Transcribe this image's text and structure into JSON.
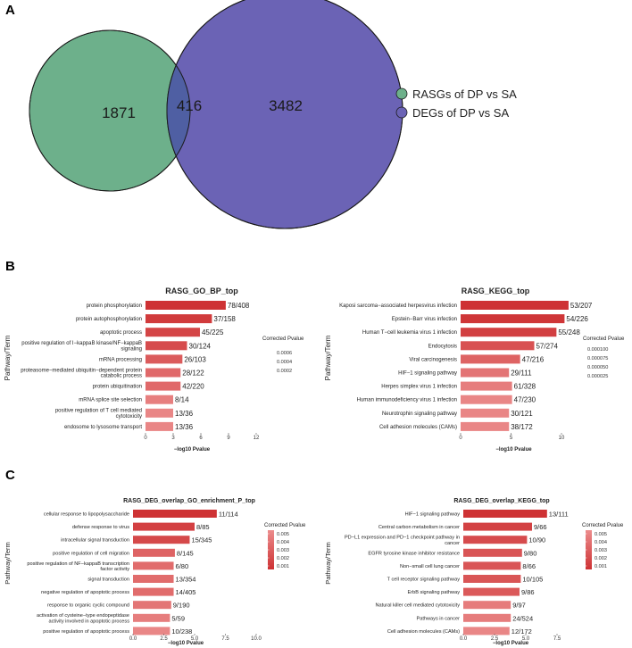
{
  "panels": {
    "a": "A",
    "b": "B",
    "c": "C"
  },
  "venn": {
    "left_only": "1871",
    "overlap": "416",
    "right_only": "3482",
    "colors": {
      "left": "#6db08b",
      "right": "#6b63b5",
      "overlap": "#4f5fa3"
    },
    "legend": [
      {
        "label": "RASGs of DP vs SA",
        "color": "#6db08b"
      },
      {
        "label": "DEGs of DP vs SA",
        "color": "#6b63b5"
      }
    ]
  },
  "chart_data": [
    {
      "id": "bp",
      "type": "bar",
      "title": "RASG_GO_BP_top",
      "xlabel": "−log10 Pvalue",
      "ylabel": "Pathway/Term",
      "xlim": [
        0,
        12
      ],
      "xticks": [
        "0",
        "3",
        "6",
        "9",
        "12"
      ],
      "categories": [
        [
          "protein phosphorylation"
        ],
        [
          "protein autophosphorylation"
        ],
        [
          "apoptotic process"
        ],
        [
          "positive regulation of I−kappaB kinase/NF−kappaB",
          "signaling"
        ],
        [
          "mRNA processing"
        ],
        [
          "proteasome−mediated ubiquitin−dependent protein",
          "catabolic process"
        ],
        [
          "protein ubiquitination"
        ],
        [
          "mRNA splice site selection"
        ],
        [
          "positive regulation of T cell mediated",
          "cytotoxicity"
        ],
        [
          "endosome to lysosome transport"
        ]
      ],
      "values": [
        8.7,
        7.2,
        5.9,
        4.5,
        4.0,
        3.8,
        3.8,
        3.0,
        3.0,
        3.0
      ],
      "labels": [
        "78/408",
        "37/158",
        "45/225",
        "30/124",
        "26/103",
        "28/122",
        "42/220",
        "8/14",
        "13/36",
        "13/36"
      ],
      "corrected_pvalue": [
        2e-05,
        8e-05,
        0.00015,
        0.0002,
        0.0003,
        0.0004,
        0.0004,
        0.00055,
        0.0006,
        0.0006
      ],
      "legend_title": "Corrected Pvalue",
      "legend_values": [
        "0.0006",
        "0.0004",
        "0.0002"
      ]
    },
    {
      "id": "kegg",
      "type": "bar",
      "title": "RASG_KEGG_top",
      "xlabel": "−log10 Pvalue",
      "ylabel": "Pathway/Term",
      "xlim": [
        0,
        12.3
      ],
      "xticks": [
        "0",
        "5",
        "10"
      ],
      "categories": [
        [
          "Kaposi sarcoma−associated herpesvirus infection"
        ],
        [
          "Epstein−Barr virus infection"
        ],
        [
          "Human T−cell leukemia virus 1 infection"
        ],
        [
          "Endocytosis"
        ],
        [
          "Viral carcinogenesis"
        ],
        [
          "HIF−1 signaling pathway"
        ],
        [
          "Herpes simplex virus 1 infection"
        ],
        [
          "Human immunodeficiency virus 1 infection"
        ],
        [
          "Neurotrophin signaling pathway"
        ],
        [
          "Cell adhesion molecules (CAMs)"
        ]
      ],
      "values": [
        10.7,
        10.3,
        9.5,
        7.3,
        5.9,
        4.8,
        5.1,
        5.1,
        4.8,
        4.8
      ],
      "labels": [
        "53/207",
        "54/226",
        "55/248",
        "57/274",
        "47/216",
        "29/111",
        "61/328",
        "47/230",
        "30/121",
        "38/172"
      ],
      "corrected_pvalue": [
        5e-06,
        1e-05,
        2e-05,
        4e-05,
        6e-05,
        8e-05,
        9e-05,
        0.0001,
        0.0001,
        0.0001
      ],
      "legend_title": "Corrected Pvalue",
      "legend_values": [
        "0.000100",
        "0.000075",
        "0.000050",
        "0.000025"
      ]
    },
    {
      "id": "go_overlap",
      "type": "bar",
      "title": "RASG_DEG_overlap_GO_enrichment_P_top",
      "xlabel": "−log10 Pvalue",
      "ylabel": "Pathway/Term",
      "xlim": [
        0,
        10
      ],
      "xticks": [
        "0.0",
        "2.5",
        "5.0",
        "7.5",
        "10.0"
      ],
      "categories": [
        [
          "cellular response to lipopolysaccharide"
        ],
        [
          "defense response to virus"
        ],
        [
          "intracellular signal transduction"
        ],
        [
          "positive regulation of cell migration"
        ],
        [
          "positive regulation of NF−kappaB transcription",
          "factor activity"
        ],
        [
          "signal transduction"
        ],
        [
          "negative regulation of apoptotic process"
        ],
        [
          "response to organic cyclic compound"
        ],
        [
          "activation of cysteine−type endopeptidase",
          "activity involved in apoptotic process"
        ],
        [
          "positive regulation of apoptotic process"
        ]
      ],
      "values": [
        6.8,
        5.0,
        4.6,
        3.4,
        3.3,
        3.3,
        3.3,
        3.1,
        3.0,
        3.0
      ],
      "labels": [
        "11/114",
        "8/85",
        "15/345",
        "8/145",
        "6/80",
        "13/354",
        "14/405",
        "9/190",
        "5/59",
        "10/238"
      ],
      "corrected_pvalue": [
        0.0002,
        0.001,
        0.0015,
        0.003,
        0.0035,
        0.0035,
        0.0035,
        0.004,
        0.0045,
        0.005
      ],
      "legend_title": "Corrected Pvalue",
      "legend_values": [
        "0.005",
        "0.004",
        "0.003",
        "0.002",
        "0.001"
      ]
    },
    {
      "id": "kegg_overlap",
      "type": "bar",
      "title": "RASG_DEG_overlap_KEGG_top",
      "xlabel": "−log10 Pvalue",
      "ylabel": "Pathway/Term",
      "xlim": [
        0,
        9
      ],
      "xticks": [
        "0.0",
        "2.5",
        "5.0",
        "7.5"
      ],
      "categories": [
        [
          "HIF−1 signaling pathway"
        ],
        [
          "Central carbon metabolism in cancer"
        ],
        [
          "PD−L1 expression and PD−1 checkpoint pathway in",
          "cancer"
        ],
        [
          "EGFR tyrosine kinase inhibitor resistance"
        ],
        [
          "Non−small cell lung cancer"
        ],
        [
          "T cell receptor signaling pathway"
        ],
        [
          "ErbB signaling pathway"
        ],
        [
          "Natural killer cell mediated cytotoxicity"
        ],
        [
          "Pathways in cancer"
        ],
        [
          "Cell adhesion molecules (CAMs)"
        ]
      ],
      "values": [
        6.7,
        5.5,
        5.1,
        4.7,
        4.6,
        4.6,
        4.5,
        3.8,
        3.8,
        3.7
      ],
      "labels": [
        "13/111",
        "9/66",
        "10/90",
        "9/80",
        "8/66",
        "10/105",
        "9/86",
        "9/97",
        "24/524",
        "12/172"
      ],
      "corrected_pvalue": [
        0.0002,
        0.001,
        0.0015,
        0.002,
        0.002,
        0.002,
        0.0022,
        0.004,
        0.004,
        0.0045
      ],
      "legend_title": "Corrected Pvalue",
      "legend_values": [
        "0.005",
        "0.004",
        "0.003",
        "0.002",
        "0.001"
      ]
    }
  ]
}
